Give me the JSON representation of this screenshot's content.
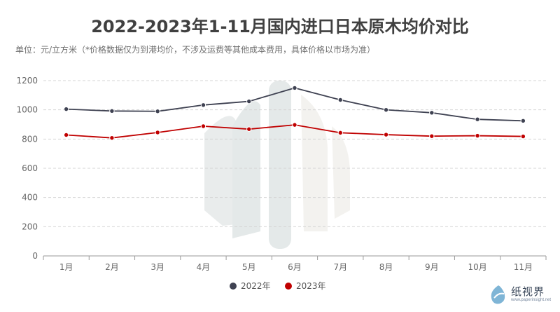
{
  "chart_data": {
    "type": "line",
    "title": "2022-2023年1-11月国内进口日本原木均价对比",
    "subtitle": "单位：元/立方米（*价格数据仅为到港均价，不涉及运费等其他成本费用，具体价格以市场为准）",
    "categories": [
      "1月",
      "2月",
      "3月",
      "4月",
      "5月",
      "6月",
      "7月",
      "8月",
      "9月",
      "10月",
      "11月"
    ],
    "ylim": [
      0,
      1200
    ],
    "yticks": [
      0,
      200,
      400,
      600,
      800,
      1000,
      1200
    ],
    "grid": true,
    "legend_position": "bottom-center",
    "series": [
      {
        "name": "2022年",
        "color": "#3f4252",
        "values": [
          1005,
          992,
          990,
          1033,
          1058,
          1150,
          1068,
          1000,
          980,
          935,
          925
        ]
      },
      {
        "name": "2023年",
        "color": "#c00000",
        "values": [
          828,
          808,
          845,
          888,
          868,
          897,
          843,
          830,
          820,
          823,
          818
        ]
      }
    ]
  },
  "logo": {
    "brand": "纸视界",
    "url": "www.paperinsight.net"
  }
}
